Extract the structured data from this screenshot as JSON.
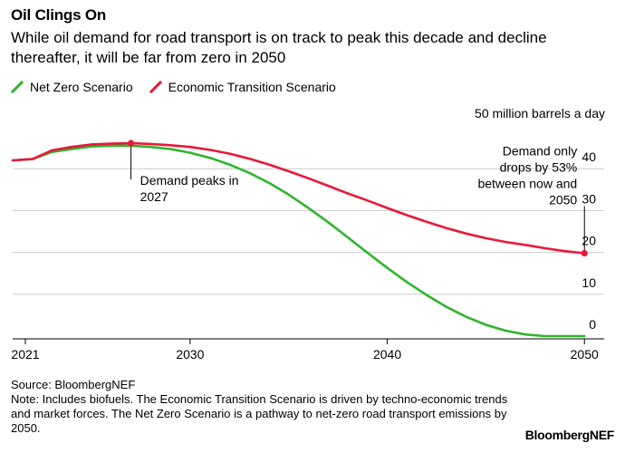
{
  "chart_data": {
    "type": "line",
    "title": "Oil Clings On",
    "subtitle": "While oil demand for road transport is on track to peak this decade and decline thereafter, it will be far from zero in 2050",
    "ylabel": "50 million barrels a day",
    "xlim": [
      2021,
      2051
    ],
    "ylim": [
      0,
      50
    ],
    "x_ticks": [
      2021,
      2030,
      2040,
      2050
    ],
    "x_tick_labels": [
      "2021",
      "2030",
      "2040",
      "2050"
    ],
    "y_ticks": [
      0,
      10,
      20,
      30,
      40
    ],
    "y_tick_labels": [
      "0",
      "10",
      "20",
      "30",
      "40"
    ],
    "grid": true,
    "legend_position": "top-left",
    "series": [
      {
        "name": "Net Zero Scenario",
        "color": "#2DB52D",
        "x": [
          2021,
          2022,
          2023,
          2024,
          2025,
          2026,
          2027,
          2028,
          2029,
          2030,
          2031,
          2032,
          2033,
          2034,
          2035,
          2036,
          2037,
          2038,
          2039,
          2040,
          2041,
          2042,
          2043,
          2044,
          2045,
          2046,
          2047,
          2048,
          2049,
          2050
        ],
        "values": [
          42.0,
          42.3,
          44.0,
          44.7,
          45.3,
          45.5,
          45.5,
          45.2,
          44.7,
          43.8,
          42.6,
          41.0,
          39.0,
          36.6,
          33.8,
          30.6,
          27.2,
          23.6,
          19.9,
          16.3,
          12.9,
          9.8,
          7.0,
          4.6,
          2.7,
          1.3,
          0.4,
          0.0,
          0.0,
          0.0
        ]
      },
      {
        "name": "Economic Transition Scenario",
        "color": "#E8183A",
        "x": [
          2021,
          2022,
          2023,
          2024,
          2025,
          2026,
          2027,
          2028,
          2029,
          2030,
          2031,
          2032,
          2033,
          2034,
          2035,
          2036,
          2037,
          2038,
          2039,
          2040,
          2041,
          2042,
          2043,
          2044,
          2045,
          2046,
          2047,
          2048,
          2049,
          2050
        ],
        "values": [
          42.0,
          42.3,
          44.4,
          45.2,
          45.8,
          46.0,
          46.1,
          45.9,
          45.6,
          45.2,
          44.5,
          43.6,
          42.4,
          41.0,
          39.4,
          37.7,
          35.9,
          34.1,
          32.4,
          30.6,
          28.9,
          27.3,
          25.8,
          24.5,
          23.4,
          22.5,
          21.8,
          21.0,
          20.3,
          19.8
        ]
      }
    ],
    "annotations": [
      {
        "label_lines": [
          "Demand peaks in",
          "2027"
        ],
        "x": 2027,
        "y": 46.1,
        "series": "Economic Transition Scenario"
      },
      {
        "label_lines": [
          "Demand only",
          "drops by 53%",
          "between now and",
          "2050"
        ],
        "x": 2050,
        "y": 19.8,
        "series": "Economic Transition Scenario"
      }
    ]
  },
  "footer": {
    "source": "Source: BloombergNEF",
    "note": "Note: Includes biofuels. The Economic Transition Scenario is driven by techno-economic trends and market forces. The Net Zero Scenario is a pathway to net-zero road transport emissions by 2050."
  },
  "brand": "BloombergNEF"
}
